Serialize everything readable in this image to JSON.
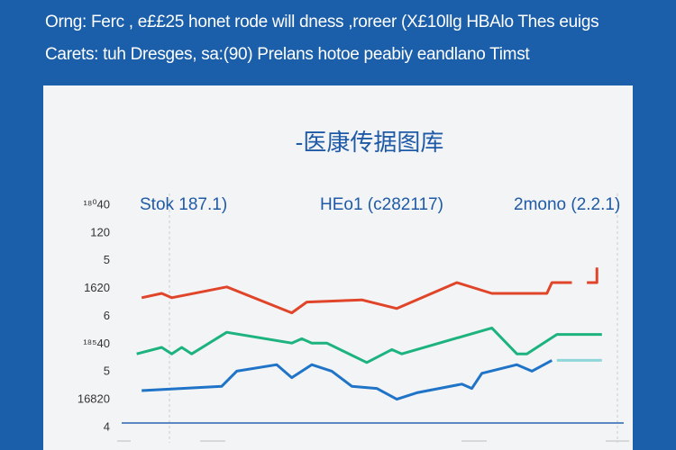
{
  "header": {
    "lines": [
      "Orng: Ferc , e££25 honet rode will dness ,roreer (X£10llg HBAlo Thes euigs",
      "Carets: tuh Dresges, sa:(90) Prelans hotoe peabiy eandlano Timst"
    ]
  },
  "chart_data": {
    "type": "line",
    "title": "-医康传据图库",
    "annotations": [
      "Stok 187.1)",
      "HEo1  (c282117)",
      "2mono (2.2.1)"
    ],
    "ytick_labels": [
      "¹⁸⁰40",
      "120",
      "5",
      "1620",
      "6",
      "¹⁸⁵40",
      "5",
      "16820",
      "4"
    ],
    "xlim": [
      0,
      100
    ],
    "ylim": [
      0,
      100
    ],
    "series": [
      {
        "color": "#e0452a",
        "x": [
          4,
          8,
          10,
          21,
          34,
          37,
          48,
          55,
          67,
          74,
          85,
          86,
          90,
          null,
          93,
          95,
          95
        ],
        "values": [
          58,
          60,
          58,
          63,
          51,
          56,
          57,
          53,
          65,
          60,
          60,
          65,
          65,
          null,
          65,
          65,
          72
        ]
      },
      {
        "color": "#1db37e",
        "x": [
          3,
          8,
          10,
          12,
          14,
          21,
          34,
          36,
          38,
          41,
          49,
          54,
          56,
          74,
          79,
          81,
          87,
          96
        ],
        "values": [
          32,
          35,
          32,
          35,
          32,
          42,
          37,
          39,
          37,
          37,
          28,
          34,
          32,
          44,
          32,
          32,
          41,
          41
        ]
      },
      {
        "color": "#1f74c8",
        "x": [
          4,
          20,
          23,
          31,
          34,
          38,
          42,
          46,
          51,
          55,
          59,
          68,
          70,
          72,
          79,
          82,
          86
        ],
        "values": [
          15,
          17,
          24,
          27,
          21,
          27,
          24,
          17,
          16,
          11,
          14,
          18,
          16,
          23,
          27,
          24,
          29
        ]
      },
      {
        "color": "#8fd6d8",
        "x": [
          87,
          96
        ],
        "values": [
          29,
          29
        ]
      }
    ]
  }
}
